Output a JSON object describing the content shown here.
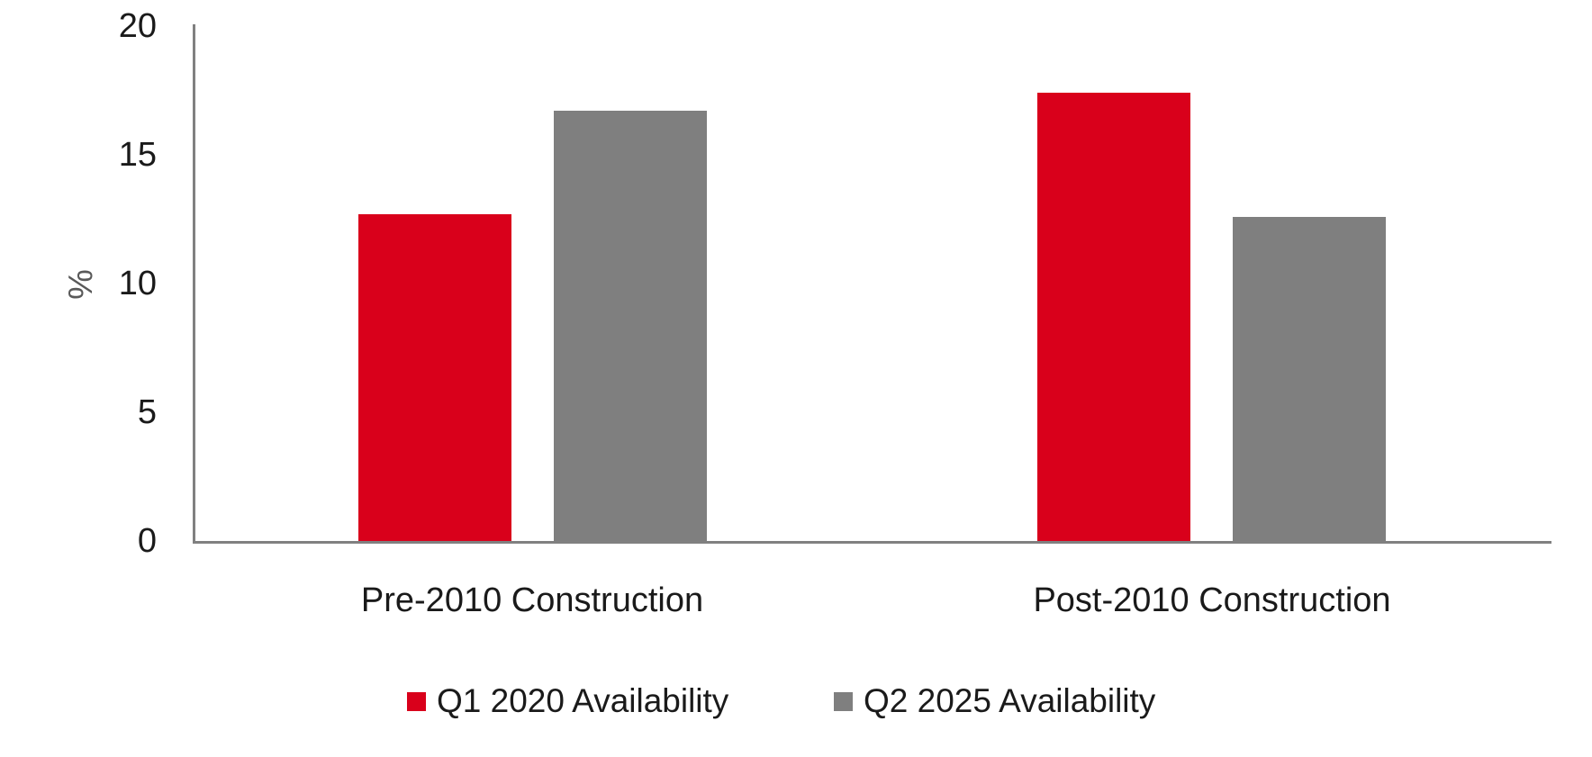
{
  "chart_data": {
    "type": "bar",
    "categories": [
      "Pre-2010 Construction",
      "Post-2010 Construction"
    ],
    "series": [
      {
        "name": "Q1 2020 Availability",
        "color": "#d9001b",
        "values": [
          12.7,
          17.4
        ]
      },
      {
        "name": "Q2 2025 Availability",
        "color": "#7f7f7f",
        "values": [
          16.7,
          12.6
        ]
      }
    ],
    "title": "",
    "xlabel": "",
    "ylabel": "%",
    "ylim": [
      0,
      20
    ],
    "yticks": [
      0,
      5,
      10,
      15,
      20
    ],
    "grid": false,
    "legend_position": "bottom",
    "axis_color": "#808080"
  }
}
